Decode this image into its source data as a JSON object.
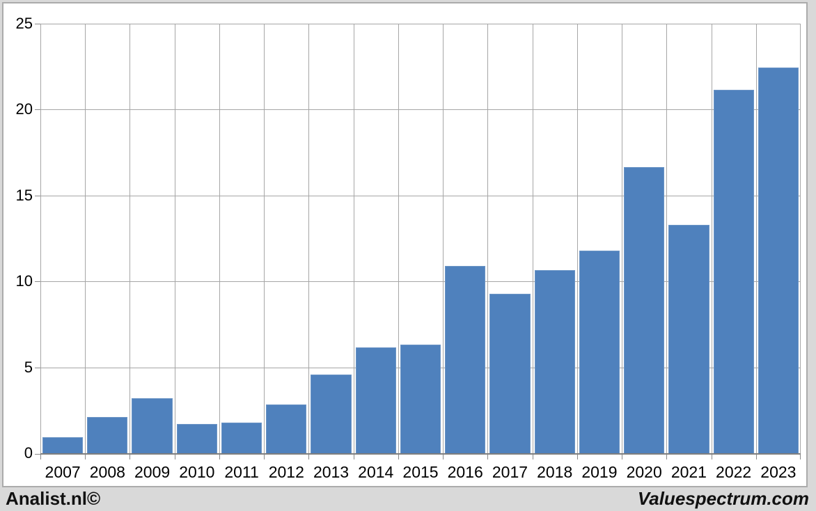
{
  "branding": {
    "left": "Analist.nl©",
    "right": "Valuespectrum.com"
  },
  "chart_data": {
    "type": "bar",
    "title": "",
    "xlabel": "",
    "ylabel": "",
    "categories": [
      "2007",
      "2008",
      "2009",
      "2010",
      "2011",
      "2012",
      "2013",
      "2014",
      "2015",
      "2016",
      "2017",
      "2018",
      "2019",
      "2020",
      "2021",
      "2022",
      "2023"
    ],
    "values": [
      0.9,
      2.05,
      3.15,
      1.65,
      1.75,
      2.8,
      4.55,
      6.1,
      6.3,
      10.85,
      9.25,
      10.6,
      11.75,
      16.6,
      13.25,
      21.1,
      22.4
    ],
    "ylim": [
      0,
      25
    ],
    "yticks": [
      0,
      5,
      10,
      15,
      20,
      25
    ],
    "grid": true,
    "legend": false,
    "colors": {
      "bar_fill": "#4f81bd",
      "bar_border": "#6d96c6",
      "gridline": "#a6a6a6",
      "axis_line": "#7f7f7f",
      "tick": "#898989",
      "panel_border": "#ababab",
      "page_background": "#d9d9d9",
      "plot_background": "#ffffff",
      "text": "#000000"
    }
  }
}
